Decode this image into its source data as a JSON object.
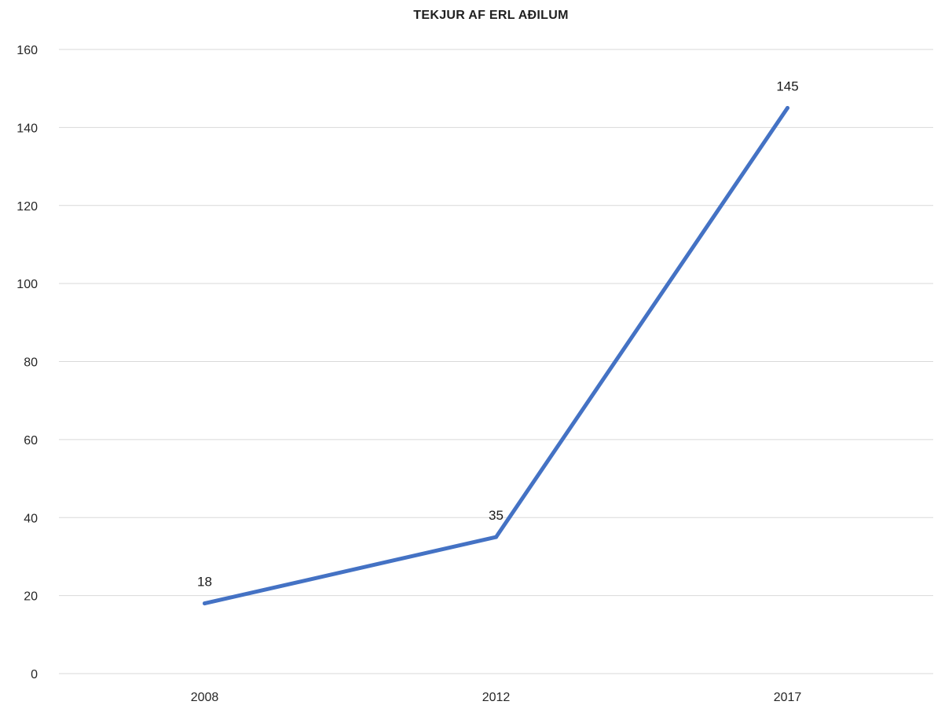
{
  "chart_data": {
    "type": "line",
    "title": "TEKJUR AF ERL AÐILUM",
    "xlabel": "",
    "ylabel": "",
    "categories": [
      "2008",
      "2012",
      "2017"
    ],
    "series": [
      {
        "values": [
          18,
          35,
          145
        ],
        "data_labels": [
          "18",
          "35",
          "145"
        ],
        "color": "#4472c4"
      }
    ],
    "ylim": [
      0,
      160
    ],
    "yticks": [
      0,
      20,
      40,
      60,
      80,
      100,
      120,
      140,
      160
    ],
    "ytick_labels": [
      "0",
      "20",
      "40",
      "60",
      "80",
      "100",
      "120",
      "140",
      "160"
    ],
    "grid": true,
    "legend": "none"
  }
}
